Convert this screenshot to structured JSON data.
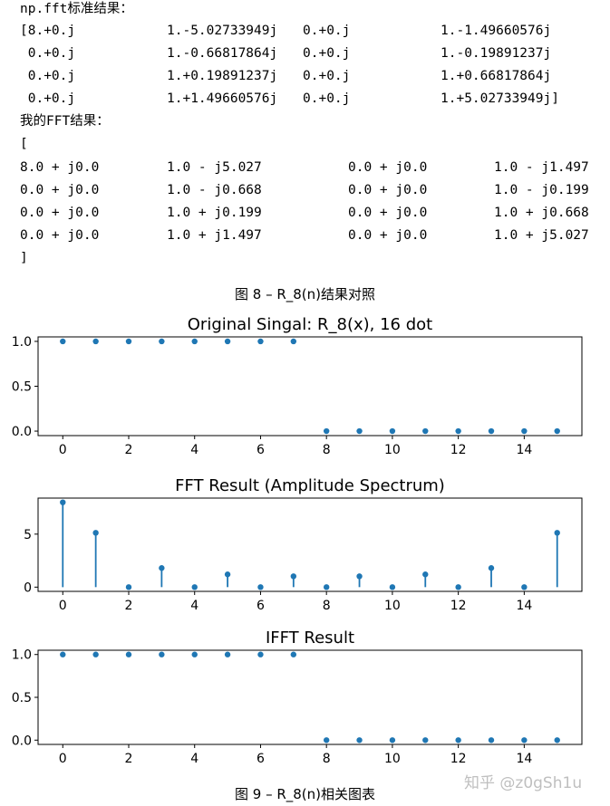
{
  "console": {
    "np_header": "np.fft标准结果：",
    "np_rows": [
      [
        "[8.+0.j",
        "1.-5.02733949j",
        "0.+0.j",
        "1.-1.49660576j"
      ],
      [
        " 0.+0.j",
        "1.-0.66817864j",
        "0.+0.j",
        "1.-0.19891237j"
      ],
      [
        " 0.+0.j",
        "1.+0.19891237j",
        "0.+0.j",
        "1.+0.66817864j"
      ],
      [
        " 0.+0.j",
        "1.+1.49660576j",
        "0.+0.j",
        "1.+5.02733949j]"
      ]
    ],
    "my_header": "我的FFT结果：",
    "open_bracket": "[",
    "my_rows": [
      [
        "8.0 + j0.0",
        "1.0 - j5.027",
        "0.0 + j0.0",
        "1.0 - j1.497"
      ],
      [
        "0.0 + j0.0",
        "1.0 - j0.668",
        "0.0 + j0.0",
        "1.0 - j0.199"
      ],
      [
        "0.0 + j0.0",
        "1.0 + j0.199",
        "0.0 + j0.0",
        "1.0 + j0.668"
      ],
      [
        "0.0 + j0.0",
        "1.0 + j1.497",
        "0.0 + j0.0",
        "1.0 + j5.027"
      ]
    ],
    "close_bracket": "]"
  },
  "captions": {
    "fig8": "图 8 – R_8(n)结果对照",
    "fig9": "图 9 – R_8(n)相关图表"
  },
  "watermark": "知乎 @z0gSh1u",
  "colors": {
    "series": "#1f77b4"
  },
  "chart_data": [
    {
      "type": "stem",
      "title": "Original Singal: R_8(x), 16 dot",
      "x": [
        0,
        1,
        2,
        3,
        4,
        5,
        6,
        7,
        8,
        9,
        10,
        11,
        12,
        13,
        14,
        15
      ],
      "y": [
        1,
        1,
        1,
        1,
        1,
        1,
        1,
        1,
        0,
        0,
        0,
        0,
        0,
        0,
        0,
        0
      ],
      "xlim": [
        -0.75,
        15.75
      ],
      "ylim": [
        -0.05,
        1.05
      ],
      "xticks": [
        0,
        2,
        4,
        6,
        8,
        10,
        12,
        14
      ],
      "yticks": [
        0.0,
        0.5,
        1.0
      ],
      "ytick_labels": [
        "0.0",
        "0.5",
        "1.0"
      ],
      "stems": false
    },
    {
      "type": "stem",
      "title": "FFT Result (Amplitude Spectrum)",
      "x": [
        0,
        1,
        2,
        3,
        4,
        5,
        6,
        7,
        8,
        9,
        10,
        11,
        12,
        13,
        14,
        15
      ],
      "y": [
        8,
        5.126,
        0,
        1.8,
        0,
        1.203,
        0,
        1.02,
        0,
        1.02,
        0,
        1.203,
        0,
        1.8,
        0,
        5.126
      ],
      "xlim": [
        -0.75,
        15.75
      ],
      "ylim": [
        -0.4,
        8.4
      ],
      "xticks": [
        0,
        2,
        4,
        6,
        8,
        10,
        12,
        14
      ],
      "yticks": [
        0,
        5
      ],
      "ytick_labels": [
        "0",
        "5"
      ],
      "stems": true
    },
    {
      "type": "stem",
      "title": "IFFT Result",
      "x": [
        0,
        1,
        2,
        3,
        4,
        5,
        6,
        7,
        8,
        9,
        10,
        11,
        12,
        13,
        14,
        15
      ],
      "y": [
        1,
        1,
        1,
        1,
        1,
        1,
        1,
        1,
        0,
        0,
        0,
        0,
        0,
        0,
        0,
        0
      ],
      "xlim": [
        -0.75,
        15.75
      ],
      "ylim": [
        -0.05,
        1.05
      ],
      "xticks": [
        0,
        2,
        4,
        6,
        8,
        10,
        12,
        14
      ],
      "yticks": [
        0.0,
        0.5,
        1.0
      ],
      "ytick_labels": [
        "0.0",
        "0.5",
        "1.0"
      ],
      "stems": false
    }
  ]
}
